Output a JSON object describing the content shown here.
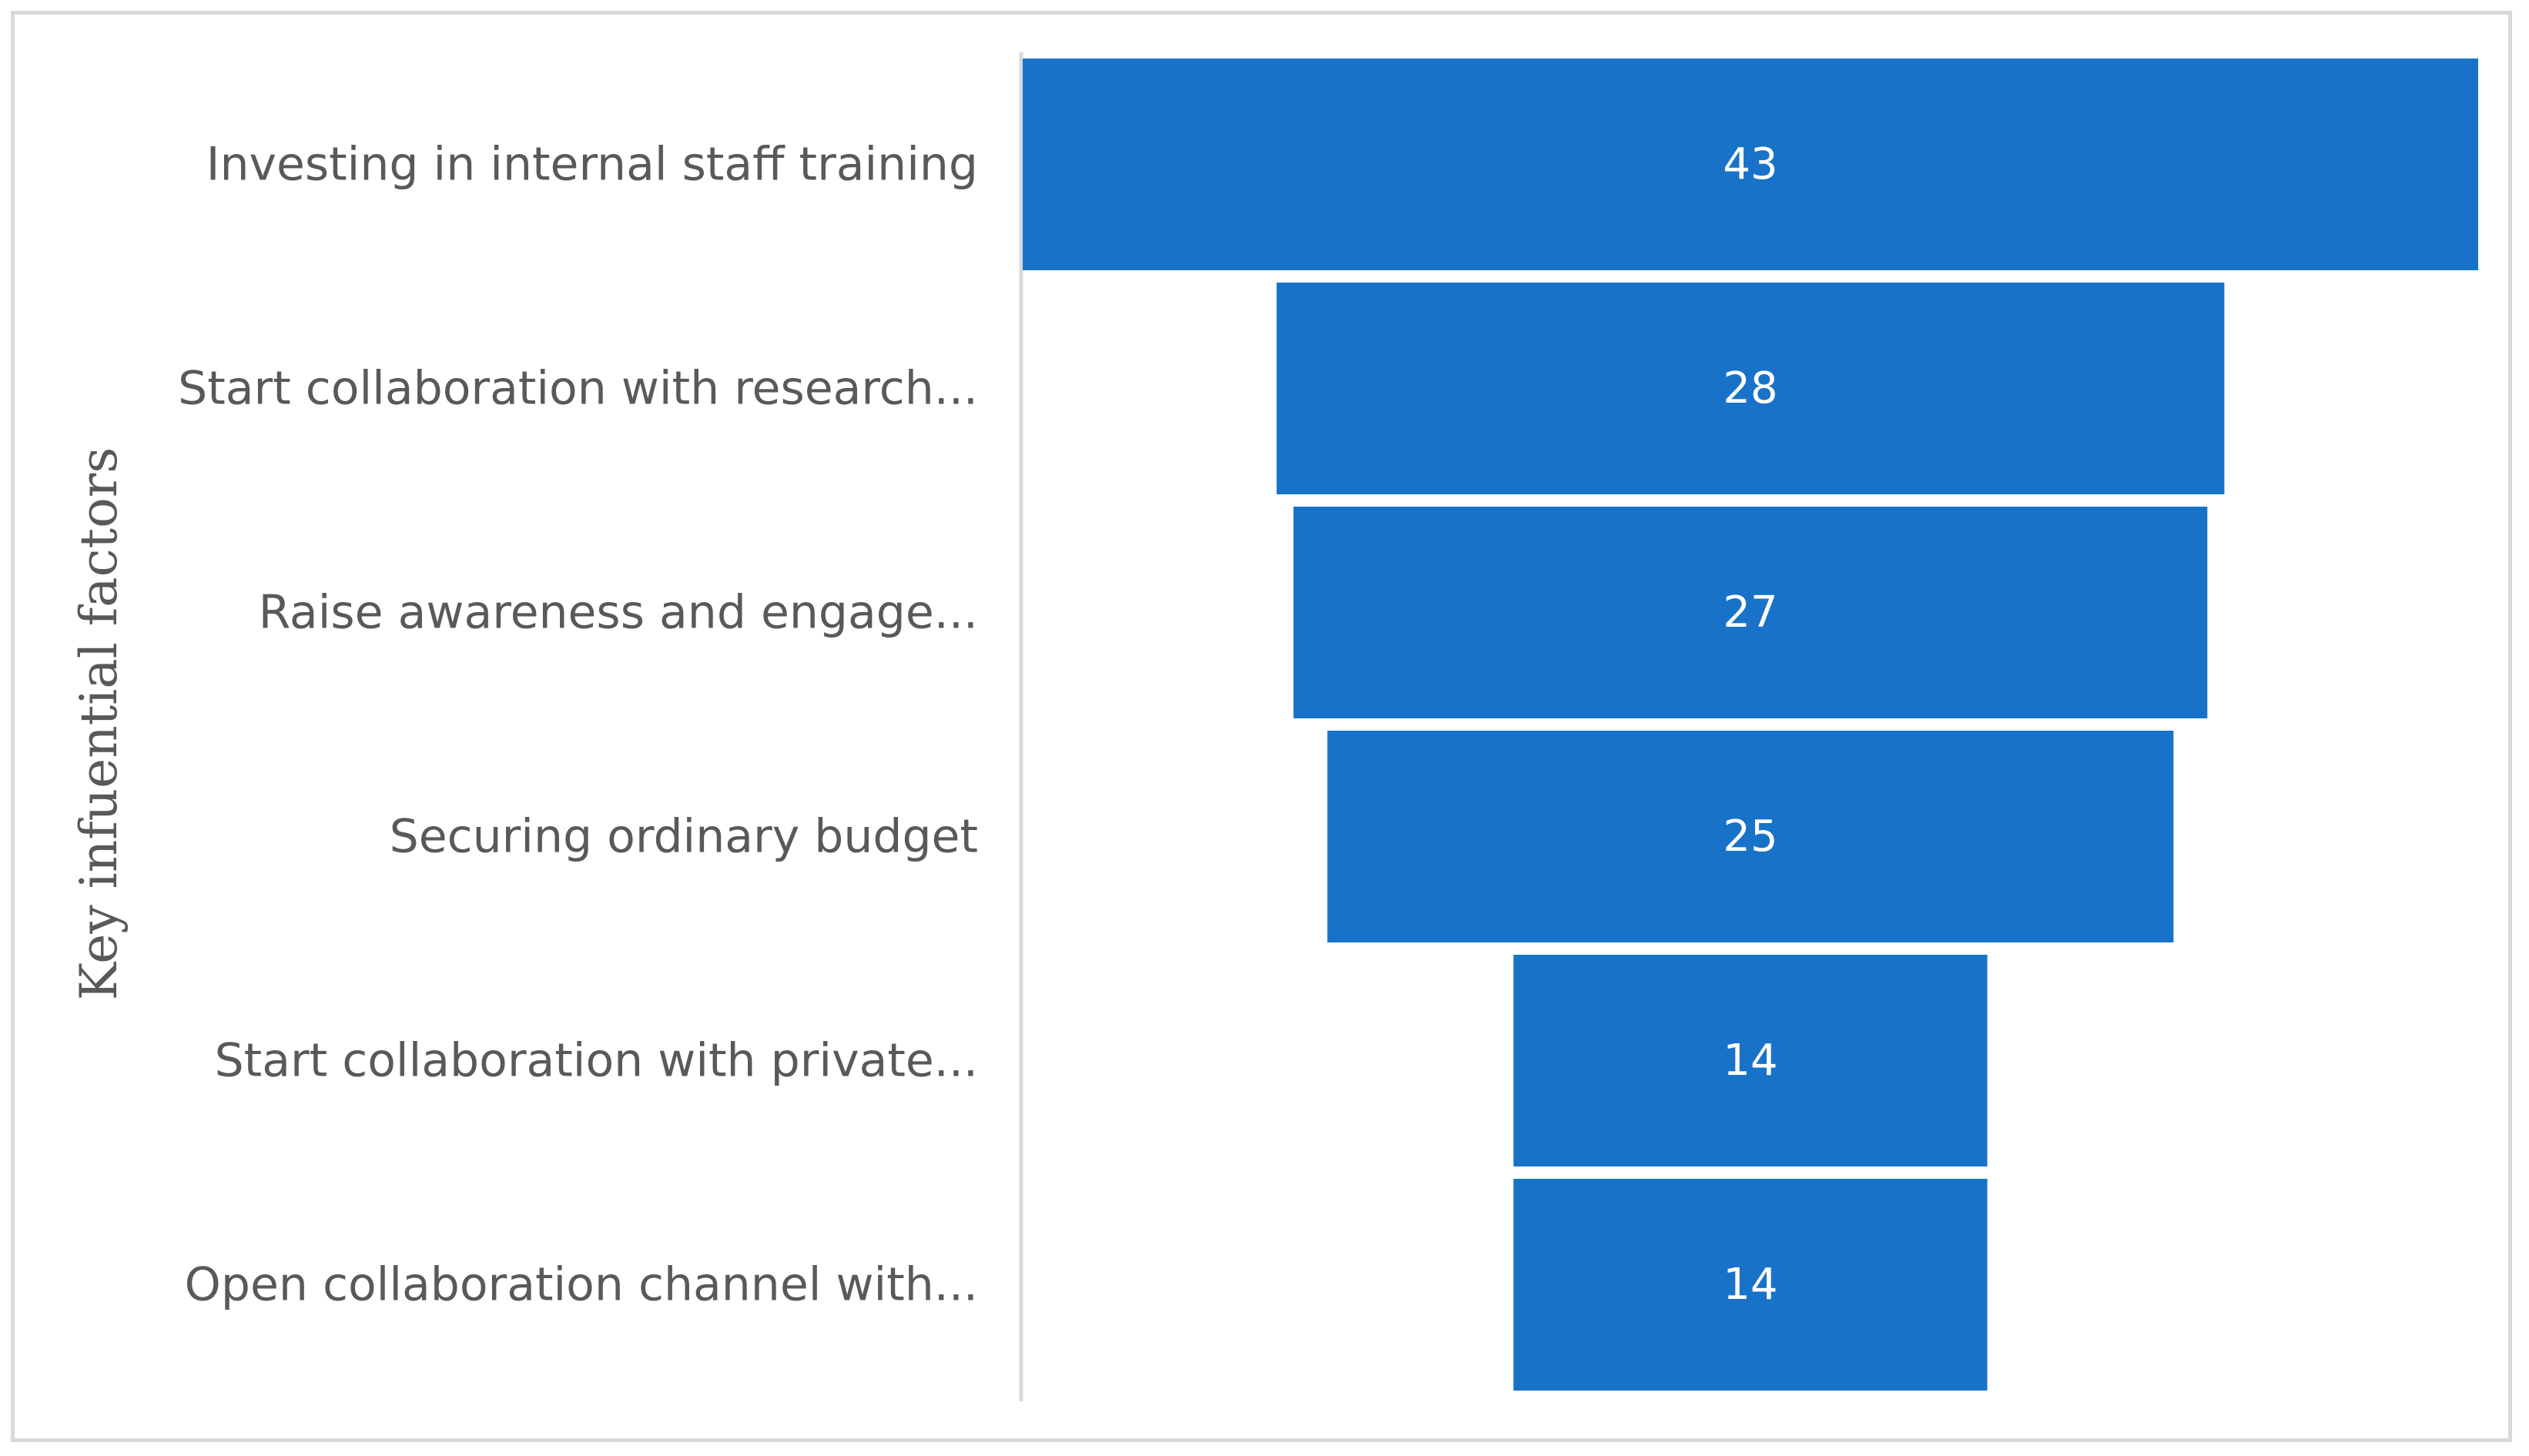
{
  "chart_data": {
    "type": "bar",
    "subtype": "funnel",
    "title": "",
    "xlabel": "",
    "ylabel": "Key infuential factors",
    "categories": [
      "Investing in internal staff training",
      "Start collaboration with research...",
      "Raise awareness and engage...",
      "Securing ordinary budget",
      "Start collaboration with private...",
      "Open collaboration channel with..."
    ],
    "values": [
      43,
      28,
      27,
      25,
      14,
      14
    ],
    "xlim": [
      0,
      43
    ],
    "grid": false,
    "legend": "none",
    "bar_color": "#1873c8",
    "axis_color": "#d9d9d9",
    "label_color": "#595959",
    "value_label_color": "#ffffff"
  }
}
